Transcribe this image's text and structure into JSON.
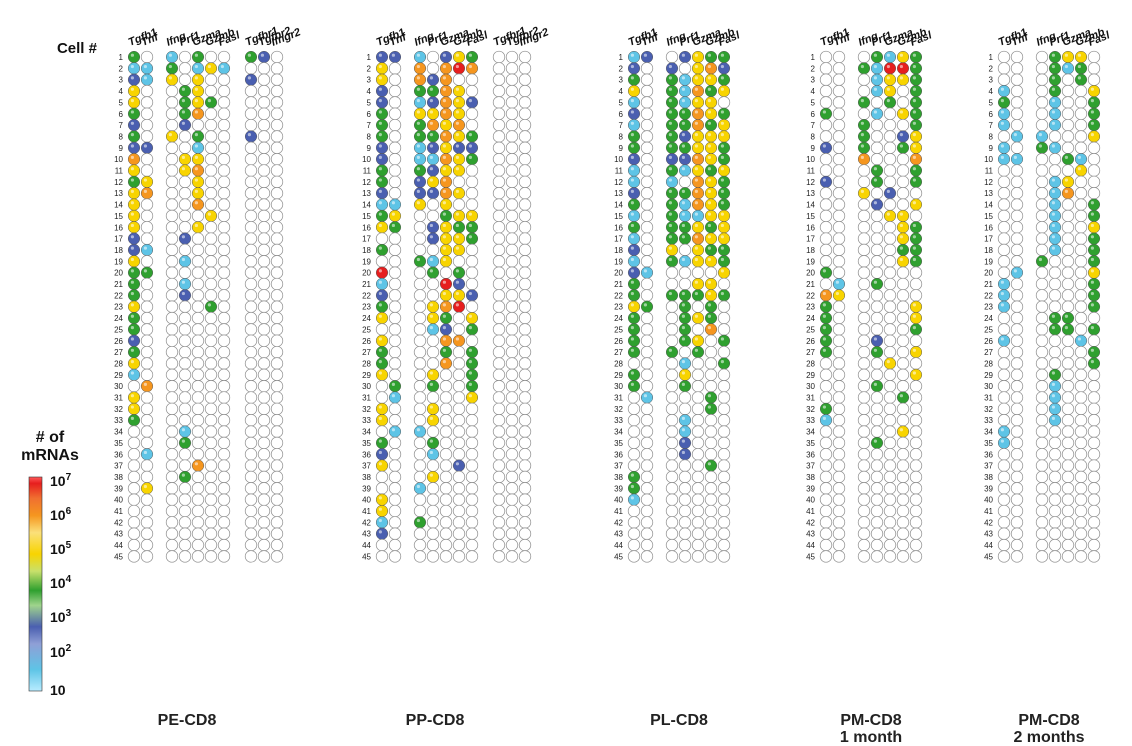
{
  "chart_data": {
    "type": "heatmap",
    "row_axis_title": "Cell #",
    "cells": [
      "1",
      "2",
      "3",
      "4",
      "5",
      "6",
      "7",
      "8",
      "9",
      "10",
      "11",
      "12",
      "13",
      "14",
      "15",
      "16",
      "17",
      "18",
      "19",
      "20",
      "21",
      "22",
      "23",
      "24",
      "25",
      "26",
      "27",
      "28",
      "29",
      "30",
      "31",
      "32",
      "33",
      "34",
      "35",
      "36",
      "37",
      "38",
      "39",
      "40",
      "41",
      "42",
      "43",
      "44",
      "45"
    ],
    "scale": {
      "title_line1": "# of",
      "title_line2": "mRNAs",
      "ticks": [
        {
          "base": "10",
          "exp": "7"
        },
        {
          "base": "10",
          "exp": "6"
        },
        {
          "base": "10",
          "exp": "5"
        },
        {
          "base": "10",
          "exp": "4"
        },
        {
          "base": "10",
          "exp": "3"
        },
        {
          "base": "10",
          "exp": "2"
        },
        {
          "base": "10",
          "exp": ""
        }
      ],
      "level_colors": {
        "0": "#ffffff",
        "1": "#5ec4e6",
        "2": "#4a5fb0",
        "3": "#2fa02f",
        "4": "#f8d400",
        "5": "#f5961f",
        "6": "#e61e1e",
        "g": "#777777"
      },
      "level_meaning": {
        "0": "not detected",
        "1": "~10-10^2",
        "2": "~10^2",
        "3": "~10^3",
        "4": "~10^4",
        "5": "~10^5",
        "6": "~10^6",
        "g": "grey (receptor genes)"
      }
    },
    "panels": [
      {
        "title_line1": "PE-CD8",
        "title_line2": "",
        "genes": [
          "Tgfb1",
          "Tnf",
          "Ifng",
          "Prf1",
          "Gzma",
          "Gzmb",
          "Fasl",
          "Tgfbr1",
          "Tgfbr2",
          "Ifngr2"
        ],
        "rows": [
          "3010300320",
          "1130141000",
          "2140400200",
          "4003400000",
          "4003430000",
          "3003500000",
          "2002000000",
          "3040300200",
          "2200100000",
          "5004400000",
          "4004500000",
          "3400400000",
          "4500400000",
          "4000500000",
          "4000040000",
          "4000400000",
          "2002000000",
          "2100000000",
          "4001000000",
          "3300000000",
          "3001000000",
          "3002000000",
          "4000030000",
          "3000000000",
          "3000000000",
          "2000000000",
          "3000000000",
          "4000000000",
          "1000000000",
          "0500000000",
          "4000000000",
          "4000000000",
          "3000000000",
          "0001000000",
          "0003000000",
          "0100000000",
          "0000500000",
          "0003000000",
          "0400000000",
          "0000000000",
          "0000000000",
          "0000000000",
          "0000000000",
          "0000000000",
          "0000000000"
        ]
      },
      {
        "title_line1": "PP-CD8",
        "title_line2": "",
        "genes": [
          "Tgfb1",
          "Tnf",
          "Ifng",
          "Prf1",
          "Gzma",
          "Gzmb",
          "Fasl",
          "Tgfbr1",
          "Tgfbr2",
          "Ifngr2"
        ],
        "rows": [
          "2210243000",
          "4050565000",
          "4052500000",
          "2033540000",
          "2012542000",
          "3044540000",
          "3035450000",
          "3033543000",
          "2012422000",
          "2011543000",
          "3032440000",
          "3024500000",
          "2022540000",
          "1140400000",
          "3400344000",
          "4302433000",
          "0002443000",
          "3000440000",
          "0031400000",
          "6003030000",
          "1000620000",
          "2000442000",
          "3004560000",
          "4004304000",
          "0001203000",
          "4000550000",
          "3000303000",
          "3000503000",
          "4004003000",
          "0303003000",
          "0100004000",
          "4004000000",
          "4004000000",
          "0110000000",
          "3003000000",
          "2001000000",
          "4000020000",
          "0004000000",
          "0010000000",
          "4000000000",
          "4000000000",
          "1030000000",
          "2000000000",
          "0000000000",
          "0000000000"
        ]
      },
      {
        "title_line1": "PL-CD8",
        "title_line2": "",
        "genes": [
          "Tgfb1",
          "Tnf",
          "Ifng",
          "Prf1",
          "Gzma",
          "Gzmb",
          "Fasl"
        ],
        "rows": [
          "1202433",
          "2020452",
          "3031443",
          "4031534",
          "1031440",
          "2033543",
          "1033534",
          "3032444",
          "3033443",
          "2022543",
          "1031434",
          "1010543",
          "2033543",
          "3031543",
          "1031144",
          "3033434",
          "1033544",
          "2040433",
          "1031443",
          "2100004",
          "3000440",
          "3033343",
          "4303030",
          "3003430",
          "3003050",
          "3003403",
          "3030300",
          "0001003",
          "3004000",
          "3003000",
          "0100030",
          "0000030",
          "0001000",
          "0001000",
          "0002000",
          "0002000",
          "0000030",
          "3000000",
          "3000000",
          "1000000",
          "0000000",
          "0000000",
          "0000000",
          "0000000",
          "0000000"
        ]
      },
      {
        "title_line1": "PM-CD8",
        "title_line2": "1 month",
        "genes": [
          "Tgfb1",
          "Tnf",
          "Ifng",
          "Prf1",
          "Gzma",
          "Gzmb",
          "Fasl"
        ],
        "rows": [
          "0003143",
          "0031663",
          "0001443",
          "0001403",
          "0030303",
          "3001043",
          "0030003",
          "0030024",
          "2030034",
          "0050005",
          "0003003",
          "2003003",
          "0040200",
          "0002004",
          "0000440",
          "0000043",
          "0000043",
          "0000033",
          "0000043",
          "3000000",
          "0103000",
          "5400000",
          "3000004",
          "3000004",
          "3000003",
          "3002000",
          "3003004",
          "0000400",
          "0000004",
          "0003000",
          "0000030",
          "3000000",
          "1000000",
          "0000040",
          "0003000",
          "0000000",
          "0000000",
          "0000000",
          "0000000",
          "0000000",
          "0000000",
          "0000000",
          "0000000",
          "0000000",
          "0000000"
        ]
      },
      {
        "title_line1": "PM-CD8",
        "title_line2": "2 months",
        "genes": [
          "Tgfb1",
          "Tnf",
          "Ifng",
          "Prf1",
          "Gzma",
          "Gzmb",
          "Fasl"
        ],
        "rows": [
          "0003440",
          "0003130",
          "0003030",
          "1003004",
          "3001003",
          "1001003",
          "1001003",
          "0110004",
          "1031000",
          "1100310",
          "0000040",
          "0001400",
          "0001500",
          "0001003",
          "0001003",
          "0001004",
          "0001003",
          "0001003",
          "0030003",
          "0100004",
          "1000003",
          "1000003",
          "1000003",
          "0003300",
          "0003303",
          "1000010",
          "0000003",
          "0000003",
          "0003000",
          "0001000",
          "0001000",
          "0001000",
          "0001000",
          "1000000",
          "1000000",
          "0000000",
          "0000000",
          "0000000",
          "0000000",
          "0000000",
          "0000000",
          "0000000",
          "0000000",
          "0000000",
          "0000000"
        ]
      }
    ]
  }
}
